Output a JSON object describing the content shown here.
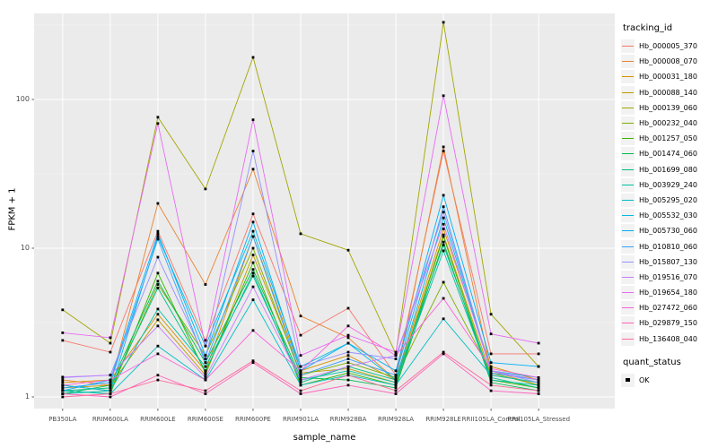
{
  "figure": {
    "background": "#FFFFFF",
    "panel_background": "#EBEBEB",
    "grid_major_color": "#FFFFFF",
    "grid_minor_color": "#FFFFFF",
    "tick_text_color": "#4D4D4D",
    "point_color": "#000000"
  },
  "y_axis": {
    "title": "FPKM + 1"
  },
  "x_axis": {
    "title": "sample_name"
  },
  "legend": {
    "title": "tracking_id"
  },
  "legend2": {
    "title": "quant_status",
    "item_label": "OK"
  },
  "chart_data": {
    "type": "line",
    "title": "",
    "xlabel": "sample_name",
    "ylabel": "FPKM + 1",
    "y_scale": "log10",
    "y_breaks": [
      1,
      10,
      100
    ],
    "y_minor_breaks": [
      3.1623,
      31.623,
      316.23
    ],
    "ylim": [
      1,
      400
    ],
    "grid": true,
    "legend_position": "right",
    "point_marker": "black-square",
    "categories": [
      "PB350LA",
      "RRIM600LA",
      "RRIM600LE",
      "RRIM600SE",
      "RRIM600PE",
      "RRIM901LA",
      "RRIM928BA",
      "RRIM928LA",
      "RRIM928LE",
      "RRII105LA_Control",
      "RRII105LA_Stressed"
    ],
    "series": [
      {
        "name": "Hb_000005_370",
        "color": "#F8766D",
        "values": [
          2.4,
          2.0,
          13,
          2.4,
          17,
          2.6,
          3.95,
          1.4,
          45,
          1.95,
          1.95
        ]
      },
      {
        "name": "Hb_000008_070",
        "color": "#EA8331",
        "values": [
          1.3,
          1.2,
          20,
          5.7,
          34,
          3.5,
          2.5,
          1.3,
          48,
          1.5,
          1.2
        ]
      },
      {
        "name": "Hb_000031_180",
        "color": "#D89000",
        "values": [
          1.25,
          1.3,
          3.6,
          1.5,
          12,
          1.5,
          1.9,
          1.3,
          13.5,
          1.6,
          1.3
        ]
      },
      {
        "name": "Hb_000088_140",
        "color": "#C09B00",
        "values": [
          1.15,
          1.2,
          3.3,
          1.4,
          9,
          1.45,
          1.55,
          1.25,
          12.3,
          1.4,
          1.25
        ]
      },
      {
        "name": "Hb_000139_060",
        "color": "#A3A500",
        "values": [
          3.85,
          2.3,
          76,
          25,
          192,
          12.5,
          9.7,
          1.95,
          330,
          3.6,
          1.6
        ]
      },
      {
        "name": "Hb_000232_040",
        "color": "#7CAE00",
        "values": [
          1.2,
          1.1,
          5.7,
          1.9,
          10,
          1.4,
          1.7,
          1.35,
          5.9,
          1.45,
          1.2
        ]
      },
      {
        "name": "Hb_001257_050",
        "color": "#39B600",
        "values": [
          1.1,
          1.05,
          6.8,
          1.45,
          8.0,
          1.2,
          1.45,
          1.2,
          12,
          1.3,
          1.15
        ]
      },
      {
        "name": "Hb_001474_060",
        "color": "#00BB4E",
        "values": [
          1.05,
          1.2,
          6.0,
          1.7,
          7.2,
          1.35,
          1.3,
          1.15,
          11,
          1.25,
          1.1
        ]
      },
      {
        "name": "Hb_001699_080",
        "color": "#00BF7D",
        "values": [
          1.1,
          1.15,
          5.4,
          1.5,
          6.8,
          1.25,
          1.6,
          1.3,
          10.5,
          1.35,
          1.15
        ]
      },
      {
        "name": "Hb_003929_240",
        "color": "#00C1A3",
        "values": [
          1.05,
          1.1,
          3.9,
          1.6,
          6.5,
          1.3,
          1.5,
          1.25,
          9.6,
          1.3,
          1.2
        ]
      },
      {
        "name": "Hb_005295_020",
        "color": "#00BFC4",
        "values": [
          1.1,
          1.05,
          2.2,
          1.3,
          4.5,
          1.2,
          1.4,
          1.2,
          3.35,
          1.4,
          1.25
        ]
      },
      {
        "name": "Hb_005532_030",
        "color": "#00BAE0",
        "values": [
          1.2,
          1.1,
          12,
          2.2,
          13,
          1.6,
          2.3,
          1.3,
          16,
          1.5,
          1.35
        ]
      },
      {
        "name": "Hb_005730_060",
        "color": "#00B0F6",
        "values": [
          1.1,
          1.3,
          12.5,
          1.9,
          15,
          1.5,
          2.3,
          1.5,
          22.7,
          1.7,
          1.6
        ]
      },
      {
        "name": "Hb_010810_060",
        "color": "#35A2FF",
        "values": [
          1.15,
          1.25,
          11.5,
          1.7,
          12,
          1.4,
          1.8,
          1.4,
          19,
          1.45,
          1.3
        ]
      },
      {
        "name": "Hb_015807_130",
        "color": "#9590FF",
        "values": [
          1.35,
          1.4,
          8.7,
          1.8,
          45,
          1.6,
          2.0,
          1.8,
          17.5,
          1.5,
          1.25
        ]
      },
      {
        "name": "Hb_019516_070",
        "color": "#C77CFF",
        "values": [
          1.36,
          1.4,
          3.0,
          1.35,
          5.5,
          1.3,
          1.6,
          1.9,
          14.5,
          1.5,
          1.3
        ]
      },
      {
        "name": "Hb_019654_180",
        "color": "#E76BF3",
        "values": [
          2.7,
          2.5,
          69,
          2.2,
          73,
          1.9,
          2.6,
          2.0,
          106,
          2.65,
          2.3
        ]
      },
      {
        "name": "Hb_027472_060",
        "color": "#FA62DB",
        "values": [
          1.2,
          1.3,
          1.95,
          1.3,
          2.8,
          1.5,
          3.0,
          1.9,
          4.6,
          1.55,
          1.35
        ]
      },
      {
        "name": "Hb_029879_150",
        "color": "#FF62BC",
        "values": [
          1.05,
          1.0,
          1.4,
          1.05,
          1.7,
          1.05,
          1.2,
          1.05,
          1.95,
          1.1,
          1.05
        ]
      },
      {
        "name": "Hb_136408_040",
        "color": "#FF6A98",
        "values": [
          1.0,
          1.05,
          1.3,
          1.1,
          1.75,
          1.1,
          1.4,
          1.1,
          2.0,
          1.2,
          1.1
        ]
      }
    ]
  }
}
